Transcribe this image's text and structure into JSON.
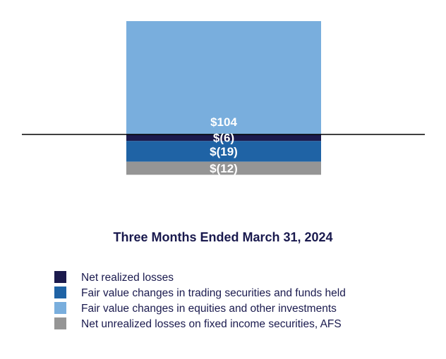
{
  "chart_data": {
    "type": "bar",
    "stacked": true,
    "categories": [
      "Three Months Ended March 31, 2024"
    ],
    "series": [
      {
        "name": "Net realized losses",
        "values": [
          -6
        ],
        "label": "$(6)",
        "color": "#1b1a4d"
      },
      {
        "name": "Fair value changes in trading securities and funds held",
        "values": [
          -19
        ],
        "label": "$(19)",
        "color": "#1f63a5"
      },
      {
        "name": "Fair value changes in equities and other investments",
        "values": [
          104
        ],
        "label": "$104",
        "color": "#79aedd"
      },
      {
        "name": "Net unrealized losses on fixed income securities, AFS",
        "values": [
          -12
        ],
        "label": "$(12)",
        "color": "#959595"
      }
    ],
    "ylim": [
      -38,
      104
    ],
    "legend_position": "bottom",
    "grid": false,
    "title": "",
    "xlabel": "",
    "ylabel": ""
  }
}
